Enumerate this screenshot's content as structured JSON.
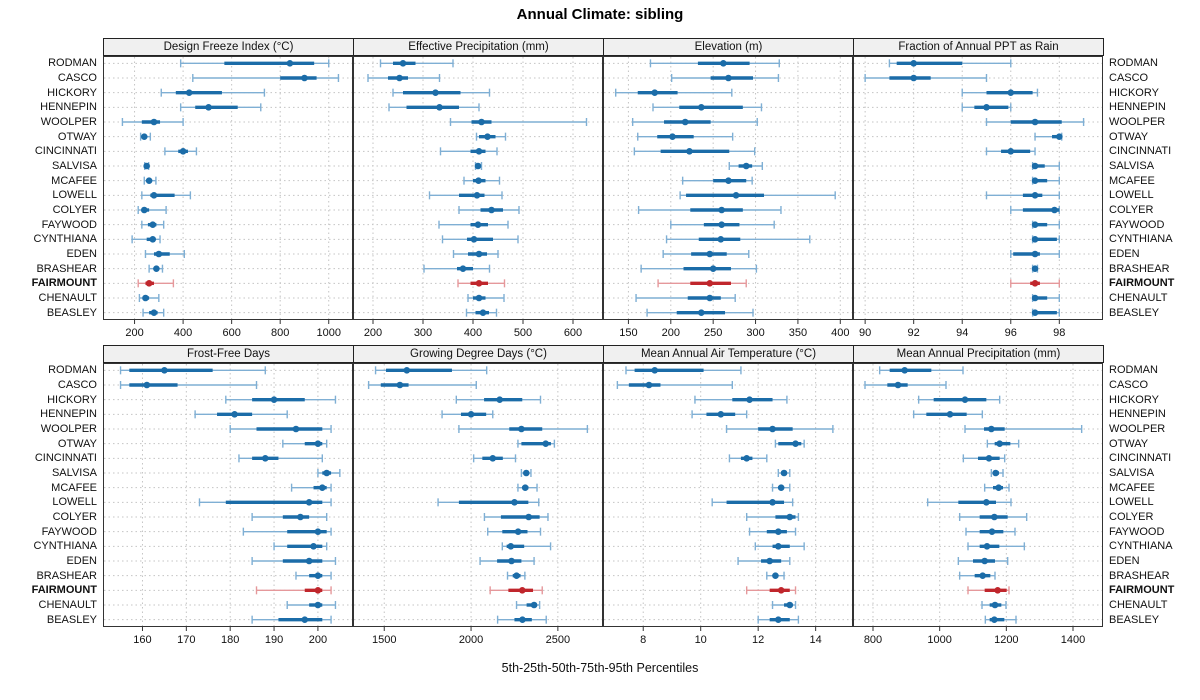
{
  "title": "Annual Climate: sibling",
  "caption": "5th-25th-50th-75th-95th Percentiles",
  "highlight_site": "FAIRMOUNT",
  "colors": {
    "series": "#1b6ca8",
    "series_light": "#7fafd4",
    "highlight": "#c0262c",
    "highlight_light": "#e5989b",
    "grid": "#c4c4c4",
    "axis": "#333333",
    "strip_bg": "#f0f0f0"
  },
  "sites": [
    "RODMAN",
    "CASCO",
    "HICKORY",
    "HENNEPIN",
    "WOOLPER",
    "OTWAY",
    "CINCINNATI",
    "SALVISA",
    "MCAFEE",
    "LOWELL",
    "COLYER",
    "FAYWOOD",
    "CYNTHIANA",
    "EDEN",
    "BRASHEAR",
    "FAIRMOUNT",
    "CHENAULT",
    "BEASLEY"
  ],
  "chart_data": [
    {
      "type": "scatter",
      "variant": "percentile-interval-dotplot",
      "title": "Design Freeze Index (°C)",
      "xlim": [
        70,
        1100
      ],
      "ticks": [
        200,
        400,
        600,
        800,
        1000
      ],
      "percentile_labels": [
        "p5",
        "p25",
        "p50",
        "p75",
        "p95"
      ],
      "values": {
        "RODMAN": [
          390,
          570,
          840,
          940,
          1000
        ],
        "CASCO": [
          440,
          800,
          900,
          950,
          1040
        ],
        "HICKORY": [
          310,
          370,
          425,
          560,
          735
        ],
        "HENNEPIN": [
          390,
          450,
          505,
          625,
          720
        ],
        "WOOLPER": [
          150,
          230,
          280,
          305,
          400
        ],
        "OTWAY": [
          225,
          232,
          240,
          250,
          265
        ],
        "CINCINNATI": [
          325,
          380,
          400,
          420,
          455
        ],
        "SALVISA": [
          242,
          246,
          250,
          254,
          258
        ],
        "MCAFEE": [
          240,
          252,
          260,
          268,
          288
        ],
        "LOWELL": [
          230,
          265,
          280,
          365,
          430
        ],
        "COLYER": [
          215,
          230,
          240,
          260,
          330
        ],
        "FAYWOOD": [
          230,
          255,
          275,
          290,
          320
        ],
        "CYNTHIANA": [
          190,
          250,
          275,
          285,
          305
        ],
        "EDEN": [
          245,
          280,
          300,
          345,
          405
        ],
        "BRASHEAR": [
          260,
          280,
          290,
          300,
          315
        ],
        "FAIRMOUNT": [
          215,
          245,
          260,
          280,
          360
        ],
        "CHENAULT": [
          220,
          235,
          245,
          260,
          300
        ],
        "BEASLEY": [
          235,
          260,
          280,
          295,
          320
        ]
      }
    },
    {
      "type": "scatter",
      "variant": "percentile-interval-dotplot",
      "title": "Effective Precipitation (mm)",
      "xlim": [
        160,
        660
      ],
      "ticks": [
        200,
        300,
        400,
        500,
        600
      ],
      "percentile_labels": [
        "p5",
        "p25",
        "p50",
        "p75",
        "p95"
      ],
      "values": {
        "RODMAN": [
          215,
          240,
          260,
          285,
          360
        ],
        "CASCO": [
          190,
          230,
          253,
          270,
          333
        ],
        "HICKORY": [
          240,
          260,
          325,
          375,
          433
        ],
        "HENNEPIN": [
          232,
          267,
          333,
          372,
          412
        ],
        "WOOLPER": [
          355,
          397,
          417,
          437,
          627
        ],
        "OTWAY": [
          407,
          412,
          429,
          445,
          465
        ],
        "CINCINNATI": [
          335,
          395,
          412,
          425,
          448
        ],
        "SALVISA": [
          405,
          408,
          410,
          413,
          417
        ],
        "MCAFEE": [
          382,
          400,
          411,
          425,
          453
        ],
        "LOWELL": [
          313,
          372,
          408,
          423,
          458
        ],
        "COLYER": [
          372,
          415,
          437,
          460,
          492
        ],
        "FAYWOOD": [
          332,
          395,
          410,
          430,
          470
        ],
        "CYNTHIANA": [
          339,
          388,
          402,
          440,
          490
        ],
        "EDEN": [
          361,
          390,
          412,
          428,
          450
        ],
        "BRASHEAR": [
          302,
          368,
          380,
          400,
          433
        ],
        "FAIRMOUNT": [
          370,
          395,
          412,
          430,
          463
        ],
        "CHENAULT": [
          390,
          400,
          412,
          425,
          462
        ],
        "BEASLEY": [
          387,
          405,
          420,
          432,
          447
        ]
      }
    },
    {
      "type": "scatter",
      "variant": "percentile-interval-dotplot",
      "title": "Elevation (m)",
      "xlim": [
        120,
        415
      ],
      "ticks": [
        150,
        200,
        250,
        300,
        350,
        400
      ],
      "percentile_labels": [
        "p5",
        "p25",
        "p50",
        "p75",
        "p95"
      ],
      "values": {
        "RODMAN": [
          176,
          232,
          262,
          293,
          328
        ],
        "CASCO": [
          201,
          247,
          268,
          297,
          327
        ],
        "HICKORY": [
          135,
          161,
          181,
          208,
          272
        ],
        "HENNEPIN": [
          179,
          210,
          236,
          285,
          307
        ],
        "WOOLPER": [
          155,
          192,
          217,
          247,
          302
        ],
        "OTWAY": [
          161,
          184,
          202,
          227,
          273
        ],
        "CINCINNATI": [
          157,
          188,
          222,
          269,
          299
        ],
        "SALVISA": [
          269,
          280,
          289,
          296,
          308
        ],
        "MCAFEE": [
          214,
          250,
          268,
          289,
          296
        ],
        "LOWELL": [
          211,
          218,
          277,
          310,
          394
        ],
        "COLYER": [
          162,
          223,
          260,
          285,
          330
        ],
        "FAYWOOD": [
          200,
          239,
          260,
          281,
          322
        ],
        "CYNTHIANA": [
          195,
          233,
          259,
          282,
          364
        ],
        "EDEN": [
          191,
          224,
          246,
          266,
          292
        ],
        "BRASHEAR": [
          165,
          215,
          250,
          271,
          301
        ],
        "FAIRMOUNT": [
          185,
          223,
          246,
          271,
          289
        ],
        "CHENAULT": [
          159,
          220,
          246,
          259,
          276
        ],
        "BEASLEY": [
          172,
          207,
          236,
          264,
          297
        ]
      }
    },
    {
      "type": "scatter",
      "variant": "percentile-interval-dotplot",
      "title": "Fraction of Annual PPT as Rain",
      "xlim": [
        89.5,
        99.8
      ],
      "ticks": [
        90,
        92,
        94,
        96,
        98
      ],
      "percentile_labels": [
        "p5",
        "p25",
        "p50",
        "p75",
        "p95"
      ],
      "values": {
        "RODMAN": [
          91.0,
          91.3,
          92.0,
          94.0,
          96.0
        ],
        "CASCO": [
          90.0,
          91.0,
          92.0,
          92.7,
          95.0
        ],
        "HICKORY": [
          94.0,
          95.0,
          96.0,
          96.9,
          97.1
        ],
        "HENNEPIN": [
          94.0,
          94.5,
          95.0,
          95.9,
          96.0
        ],
        "WOOLPER": [
          95.0,
          96.0,
          97.0,
          98.1,
          99.0
        ],
        "OTWAY": [
          97.0,
          97.7,
          98.0,
          98.0,
          98.1
        ],
        "CINCINNATI": [
          95.0,
          95.6,
          96.0,
          96.8,
          97.0
        ],
        "SALVISA": [
          96.9,
          97.0,
          97.0,
          97.4,
          98.0
        ],
        "MCAFEE": [
          96.9,
          97.0,
          97.0,
          97.5,
          98.0
        ],
        "LOWELL": [
          95.0,
          96.5,
          97.0,
          97.3,
          98.0
        ],
        "COLYER": [
          96.0,
          96.5,
          97.8,
          98.0,
          98.0
        ],
        "FAYWOOD": [
          96.9,
          97.0,
          97.0,
          97.5,
          98.0
        ],
        "CYNTHIANA": [
          96.9,
          97.0,
          97.0,
          97.9,
          98.0
        ],
        "EDEN": [
          96.0,
          96.1,
          97.0,
          97.2,
          98.0
        ],
        "BRASHEAR": [
          96.9,
          97.0,
          97.0,
          97.0,
          97.1
        ],
        "FAIRMOUNT": [
          96.0,
          96.8,
          97.0,
          97.2,
          98.0
        ],
        "CHENAULT": [
          96.9,
          97.0,
          97.0,
          97.5,
          98.0
        ],
        "BEASLEY": [
          96.9,
          97.0,
          97.0,
          97.9,
          98.0
        ]
      }
    },
    {
      "type": "scatter",
      "variant": "percentile-interval-dotplot",
      "title": "Frost-Free Days",
      "xlim": [
        151,
        208
      ],
      "ticks": [
        160,
        170,
        180,
        190,
        200
      ],
      "percentile_labels": [
        "p5",
        "p25",
        "p50",
        "p75",
        "p95"
      ],
      "values": {
        "RODMAN": [
          155,
          157,
          165,
          176,
          188
        ],
        "CASCO": [
          155,
          157,
          161,
          168,
          186
        ],
        "HICKORY": [
          179,
          185,
          190,
          197,
          204
        ],
        "HENNEPIN": [
          172,
          177,
          181,
          185,
          193
        ],
        "WOOLPER": [
          180,
          186,
          195,
          201,
          203
        ],
        "OTWAY": [
          192,
          197,
          200,
          201,
          202
        ],
        "CINCINNATI": [
          182,
          185,
          188,
          191,
          201
        ],
        "SALVISA": [
          200,
          201,
          202,
          203,
          205
        ],
        "MCAFEE": [
          194,
          199,
          201,
          202,
          203
        ],
        "LOWELL": [
          173,
          179,
          198,
          201,
          203
        ],
        "COLYER": [
          185,
          192,
          196,
          198,
          202
        ],
        "FAYWOOD": [
          183,
          193,
          200,
          202,
          203
        ],
        "CYNTHIANA": [
          190,
          193,
          199,
          201,
          202
        ],
        "EDEN": [
          185,
          192,
          198,
          201,
          204
        ],
        "BRASHEAR": [
          195,
          198,
          200,
          201,
          203
        ],
        "FAIRMOUNT": [
          186,
          197,
          200,
          201,
          203
        ],
        "CHENAULT": [
          193,
          198,
          200,
          201,
          204
        ],
        "BEASLEY": [
          185,
          191,
          197,
          201,
          203
        ]
      }
    },
    {
      "type": "scatter",
      "variant": "percentile-interval-dotplot",
      "title": "Growing Degree Days (°C)",
      "xlim": [
        1320,
        2760
      ],
      "ticks": [
        1500,
        2000,
        2500
      ],
      "percentile_labels": [
        "p5",
        "p25",
        "p50",
        "p75",
        "p95"
      ],
      "values": {
        "RODMAN": [
          1450,
          1510,
          1630,
          1890,
          2090
        ],
        "CASCO": [
          1410,
          1480,
          1590,
          1640,
          2030
        ],
        "HICKORY": [
          1915,
          2075,
          2165,
          2295,
          2400
        ],
        "HENNEPIN": [
          1833,
          1942,
          2000,
          2087,
          2125
        ],
        "WOOLPER": [
          1930,
          2220,
          2290,
          2410,
          2670
        ],
        "OTWAY": [
          2270,
          2290,
          2430,
          2460,
          2480
        ],
        "CINCINNATI": [
          2015,
          2065,
          2125,
          2183,
          2256
        ],
        "SALVISA": [
          2290,
          2305,
          2318,
          2330,
          2345
        ],
        "MCAFEE": [
          2270,
          2295,
          2312,
          2330,
          2380
        ],
        "LOWELL": [
          1810,
          1930,
          2250,
          2330,
          2390
        ],
        "COLYER": [
          2077,
          2172,
          2332,
          2395,
          2443
        ],
        "FAYWOOD": [
          2096,
          2180,
          2271,
          2325,
          2400
        ],
        "CYNTHIANA": [
          2180,
          2205,
          2229,
          2306,
          2458
        ],
        "EDEN": [
          2052,
          2150,
          2233,
          2290,
          2363
        ],
        "BRASHEAR": [
          2210,
          2240,
          2262,
          2285,
          2310
        ],
        "FAIRMOUNT": [
          2110,
          2215,
          2295,
          2357,
          2410
        ],
        "CHENAULT": [
          2262,
          2320,
          2363,
          2380,
          2395
        ],
        "BEASLEY": [
          2153,
          2250,
          2296,
          2350,
          2433
        ]
      }
    },
    {
      "type": "scatter",
      "variant": "percentile-interval-dotplot",
      "title": "Mean Annual Air Temperature (°C)",
      "xlim": [
        6.6,
        15.3
      ],
      "ticks": [
        8,
        10,
        12,
        14
      ],
      "percentile_labels": [
        "p5",
        "p25",
        "p50",
        "p75",
        "p95"
      ],
      "values": {
        "RODMAN": [
          7.4,
          7.7,
          8.4,
          10.1,
          11.4
        ],
        "CASCO": [
          7.1,
          7.5,
          8.2,
          8.6,
          11.1
        ],
        "HICKORY": [
          9.8,
          11.1,
          11.7,
          12.5,
          13.0
        ],
        "HENNEPIN": [
          9.7,
          10.2,
          10.7,
          11.2,
          11.6
        ],
        "WOOLPER": [
          10.9,
          12.0,
          12.5,
          13.2,
          14.6
        ],
        "OTWAY": [
          12.6,
          12.7,
          13.3,
          13.5,
          13.6
        ],
        "CINCINNATI": [
          11.0,
          11.4,
          11.6,
          11.8,
          12.3
        ],
        "SALVISA": [
          12.7,
          12.8,
          12.9,
          13.0,
          13.1
        ],
        "MCAFEE": [
          12.5,
          12.7,
          12.8,
          12.9,
          13.1
        ],
        "LOWELL": [
          10.4,
          10.9,
          12.5,
          12.9,
          13.2
        ],
        "COLYER": [
          11.6,
          12.6,
          13.1,
          13.3,
          13.4
        ],
        "FAYWOOD": [
          11.7,
          12.3,
          12.7,
          13.0,
          13.3
        ],
        "CYNTHIANA": [
          11.9,
          12.5,
          12.7,
          13.1,
          13.6
        ],
        "EDEN": [
          11.3,
          12.1,
          12.4,
          12.8,
          13.1
        ],
        "BRASHEAR": [
          12.3,
          12.5,
          12.6,
          12.7,
          12.9
        ],
        "FAIRMOUNT": [
          11.6,
          12.4,
          12.8,
          13.1,
          13.3
        ],
        "CHENAULT": [
          12.5,
          12.9,
          13.1,
          13.2,
          13.3
        ],
        "BEASLEY": [
          12.0,
          12.4,
          12.7,
          13.1,
          13.4
        ]
      }
    },
    {
      "type": "scatter",
      "variant": "percentile-interval-dotplot",
      "title": "Mean Annual Precipitation (mm)",
      "xlim": [
        740,
        1490
      ],
      "ticks": [
        800,
        1000,
        1200,
        1400
      ],
      "percentile_labels": [
        "p5",
        "p25",
        "p50",
        "p75",
        "p95"
      ],
      "values": {
        "RODMAN": [
          820,
          850,
          895,
          975,
          1070
        ],
        "CASCO": [
          776,
          843,
          875,
          904,
          1019
        ],
        "HICKORY": [
          937,
          982,
          1076,
          1140,
          1180
        ],
        "HENNEPIN": [
          922,
          960,
          1031,
          1081,
          1128
        ],
        "WOOLPER": [
          1076,
          1133,
          1155,
          1195,
          1426
        ],
        "OTWAY": [
          1143,
          1165,
          1180,
          1212,
          1237
        ],
        "CINCINNATI": [
          1071,
          1115,
          1148,
          1180,
          1195
        ],
        "SALVISA": [
          1155,
          1162,
          1168,
          1178,
          1190
        ],
        "MCAFEE": [
          1135,
          1160,
          1177,
          1190,
          1208
        ],
        "LOWELL": [
          964,
          1056,
          1140,
          1169,
          1214
        ],
        "COLYER": [
          1060,
          1120,
          1164,
          1204,
          1261
        ],
        "FAYWOOD": [
          1079,
          1120,
          1157,
          1191,
          1226
        ],
        "CYNTHIANA": [
          1085,
          1120,
          1142,
          1179,
          1254
        ],
        "EDEN": [
          1056,
          1100,
          1135,
          1166,
          1204
        ],
        "BRASHEAR": [
          1060,
          1105,
          1129,
          1152,
          1166
        ],
        "FAIRMOUNT": [
          1085,
          1135,
          1174,
          1201,
          1208
        ],
        "CHENAULT": [
          1127,
          1150,
          1166,
          1185,
          1199
        ],
        "BEASLEY": [
          1137,
          1150,
          1164,
          1194,
          1229
        ]
      }
    }
  ]
}
